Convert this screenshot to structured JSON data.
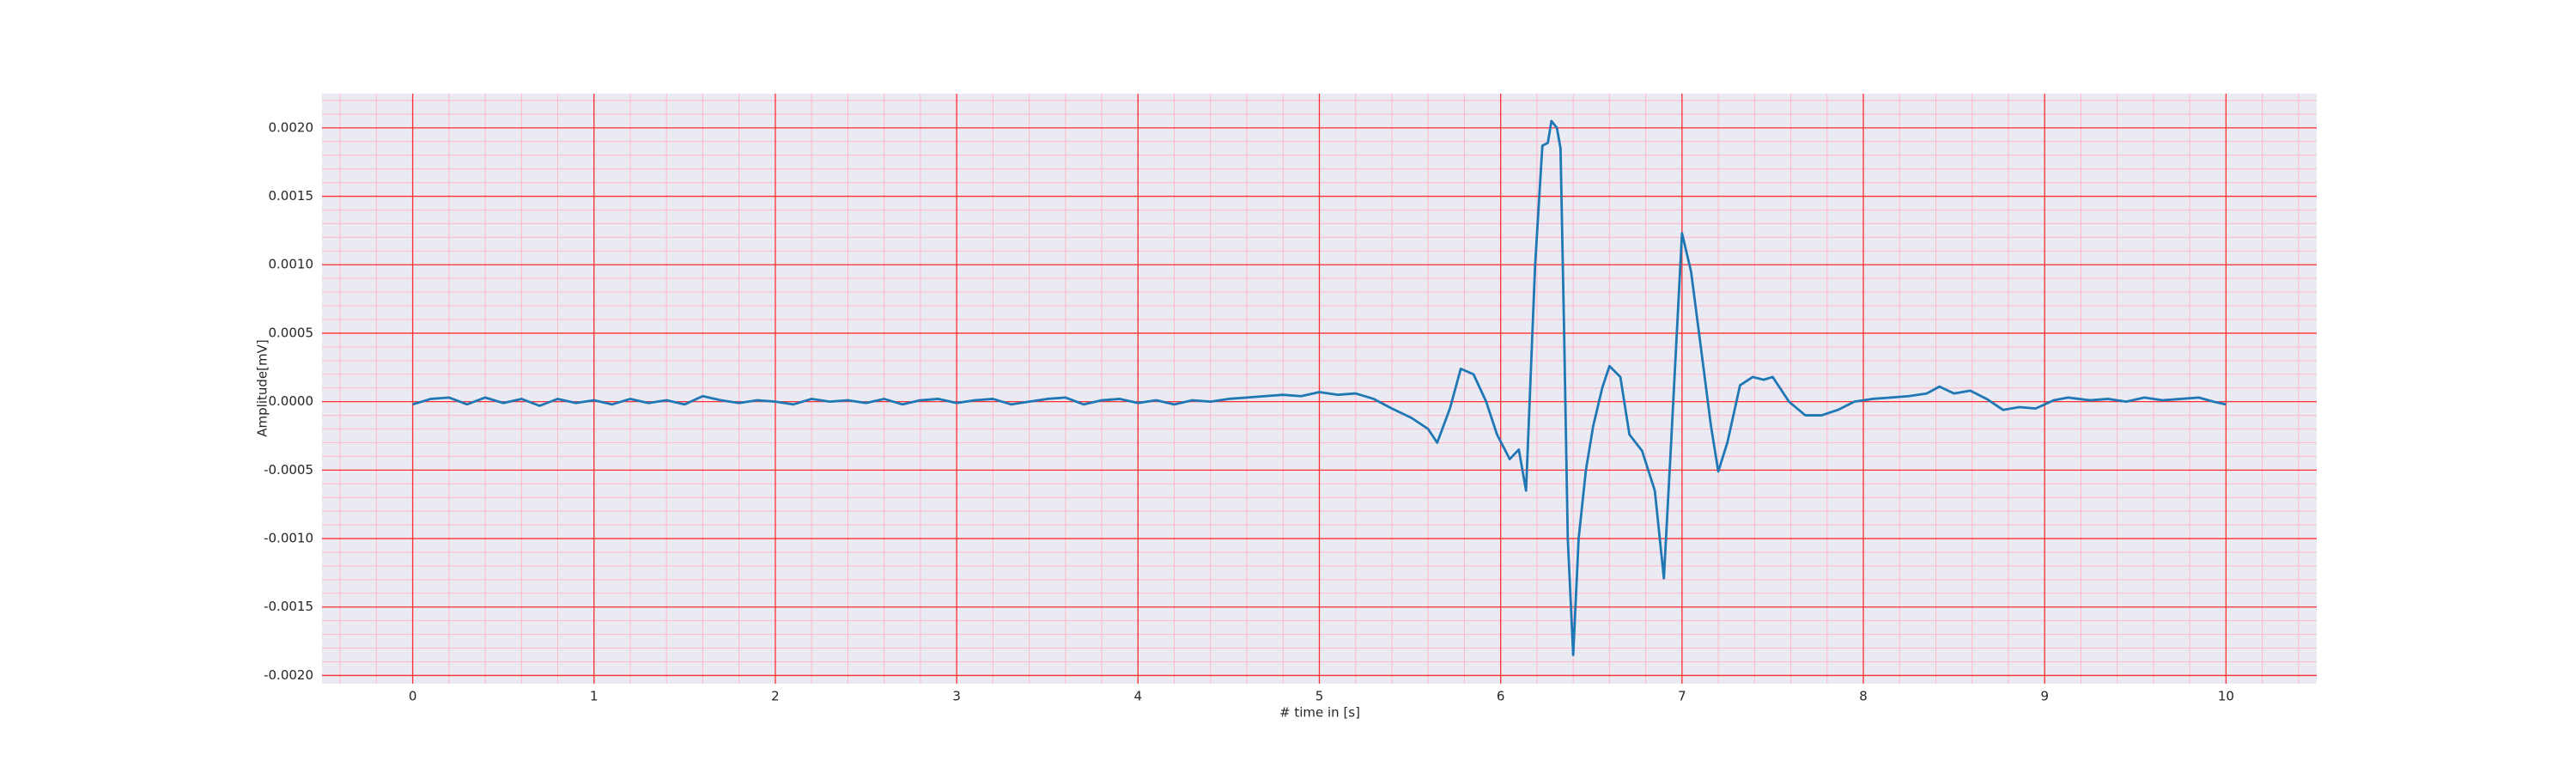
{
  "chart_data": {
    "type": "line",
    "xlabel": "# time in [s]",
    "ylabel": "Amplitude[mV]",
    "xlim": [
      -0.5,
      10.5
    ],
    "ylim": [
      -0.00206,
      0.00225
    ],
    "xticks": [
      0,
      1,
      2,
      3,
      4,
      5,
      6,
      7,
      8,
      9,
      10
    ],
    "yticks": [
      {
        "value": -0.002,
        "label": "-0.0020"
      },
      {
        "value": -0.0015,
        "label": "-0.0015"
      },
      {
        "value": -0.001,
        "label": "-0.0010"
      },
      {
        "value": -0.0005,
        "label": "-0.0005"
      },
      {
        "value": 0,
        "label": "0.0000"
      },
      {
        "value": 0.0005,
        "label": "0.0005"
      },
      {
        "value": 0.001,
        "label": "0.0010"
      },
      {
        "value": 0.0015,
        "label": "0.0015"
      },
      {
        "value": 0.002,
        "label": "0.0020"
      }
    ],
    "grid": true,
    "grid_color": "#ff3030",
    "minor_grid": true,
    "minor_grid_color": "#ffb8c8",
    "background": "#eaeaf2",
    "series": [
      {
        "color": "#1f77b4",
        "x": [
          0,
          0.1,
          0.2,
          0.3,
          0.4,
          0.5,
          0.6,
          0.7,
          0.8,
          0.9,
          1.0,
          1.1,
          1.2,
          1.3,
          1.4,
          1.5,
          1.6,
          1.7,
          1.8,
          1.9,
          2.0,
          2.1,
          2.2,
          2.3,
          2.4,
          2.5,
          2.6,
          2.7,
          2.8,
          2.9,
          3.0,
          3.1,
          3.2,
          3.3,
          3.4,
          3.5,
          3.6,
          3.7,
          3.8,
          3.9,
          4.0,
          4.1,
          4.2,
          4.3,
          4.4,
          4.5,
          4.6,
          4.7,
          4.8,
          4.9,
          5.0,
          5.1,
          5.2,
          5.3,
          5.4,
          5.51,
          5.6,
          5.65,
          5.72,
          5.78,
          5.85,
          5.92,
          5.98,
          6.05,
          6.1,
          6.14,
          6.19,
          6.23,
          6.26,
          6.28,
          6.31,
          6.33,
          6.35,
          6.37,
          6.4,
          6.43,
          6.47,
          6.51,
          6.56,
          6.6,
          6.66,
          6.71,
          6.78,
          6.85,
          6.9,
          6.94,
          7.0,
          7.05,
          7.09,
          7.16,
          7.2,
          7.25,
          7.32,
          7.39,
          7.45,
          7.5,
          7.59,
          7.68,
          7.77,
          7.86,
          7.95,
          8.05,
          8.15,
          8.25,
          8.35,
          8.42,
          8.5,
          8.59,
          8.68,
          8.77,
          8.86,
          8.95,
          9.05,
          9.13,
          9.25,
          9.35,
          9.45,
          9.55,
          9.65,
          9.75,
          9.85,
          9.93,
          10.0
        ],
        "values": [
          -2e-05,
          2e-05,
          3e-05,
          -2e-05,
          3e-05,
          -1e-05,
          2e-05,
          -3e-05,
          2e-05,
          -1e-05,
          1e-05,
          -2e-05,
          2e-05,
          -1e-05,
          1e-05,
          -2e-05,
          4e-05,
          1e-05,
          -1e-05,
          1e-05,
          0.0,
          -2e-05,
          2e-05,
          0.0,
          1e-05,
          -1e-05,
          2e-05,
          -2e-05,
          1e-05,
          2e-05,
          -1e-05,
          1e-05,
          2e-05,
          -2e-05,
          0.0,
          2e-05,
          3e-05,
          -2e-05,
          1e-05,
          2e-05,
          -1e-05,
          1e-05,
          -2e-05,
          1e-05,
          0.0,
          2e-05,
          3e-05,
          4e-05,
          5e-05,
          4e-05,
          7e-05,
          5e-05,
          6e-05,
          2e-05,
          -5e-05,
          -0.00012,
          -0.0002,
          -0.0003,
          -5e-05,
          0.00024,
          0.0002,
          0.0,
          -0.00024,
          -0.00042,
          -0.00035,
          -0.00065,
          0.001,
          0.00187,
          0.00189,
          0.00205,
          0.002,
          0.00185,
          0.0005,
          -0.001,
          -0.00185,
          -0.001,
          -0.0005,
          -0.00018,
          0.0001,
          0.00026,
          0.00018,
          -0.00024,
          -0.00036,
          -0.00065,
          -0.00129,
          -0.0003,
          0.00123,
          0.00095,
          0.00054,
          -0.00018,
          -0.00051,
          -0.0003,
          0.00012,
          0.00018,
          0.00016,
          0.00018,
          0.0,
          -0.0001,
          -0.0001,
          -6e-05,
          0.0,
          2e-05,
          3e-05,
          4e-05,
          6e-05,
          0.00011,
          6e-05,
          8e-05,
          2e-05,
          -6e-05,
          -4e-05,
          -5e-05,
          1e-05,
          3e-05,
          1e-05,
          2e-05,
          0.0,
          3e-05,
          1e-05,
          2e-05,
          3e-05,
          0.0,
          -2e-05
        ]
      }
    ]
  }
}
